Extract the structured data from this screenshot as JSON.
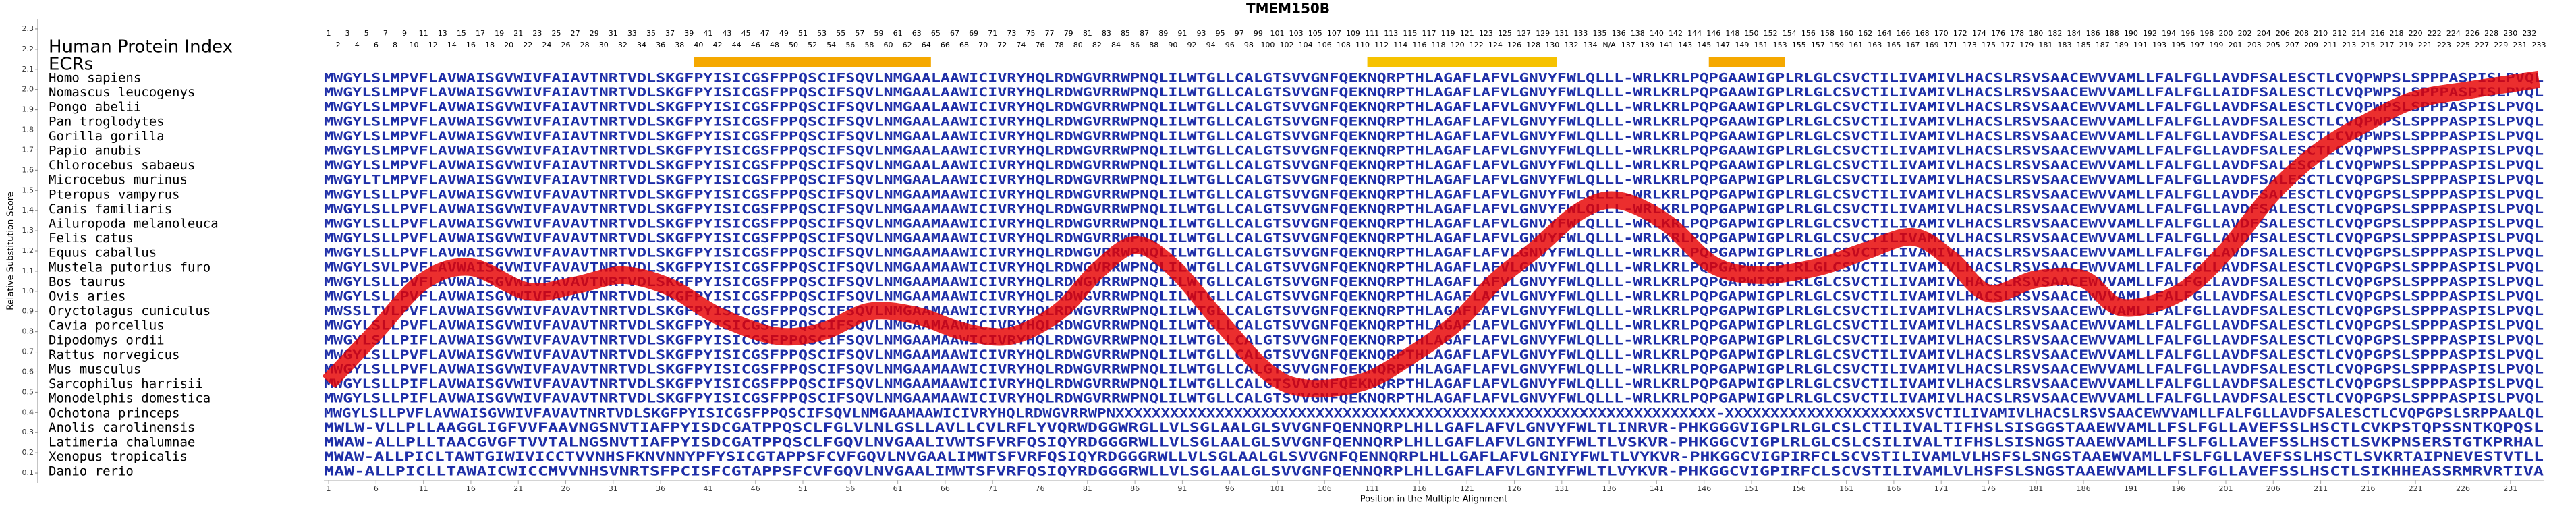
{
  "title": "TMEM150B",
  "y_axis_label": "Relative Substitution Score",
  "x_axis_label": "Position in the Multiple Alignment",
  "index_label": "Human Protein Index",
  "ecr_label": "ECRs",
  "protein_index": [
    1,
    2,
    3,
    4,
    5,
    6,
    7,
    8,
    9,
    10,
    11,
    12,
    13,
    14,
    15,
    16,
    17,
    18,
    19,
    20,
    21,
    22,
    23,
    24,
    25,
    26,
    27,
    28,
    29,
    30,
    31,
    32,
    33,
    34,
    35,
    36,
    37,
    38,
    39,
    40,
    41,
    42,
    43,
    44,
    45,
    46,
    47,
    48,
    49,
    50,
    51,
    52,
    53,
    54,
    55,
    56,
    57,
    58,
    59,
    60,
    61,
    62,
    63,
    64,
    65,
    66,
    67,
    68,
    69,
    70,
    71,
    72,
    73,
    74,
    75,
    76,
    77,
    78,
    79,
    80,
    81,
    82,
    83,
    84,
    85,
    86,
    87,
    88,
    89,
    90,
    91,
    92,
    93,
    94,
    95,
    96,
    97,
    98,
    99,
    100,
    101,
    102,
    103,
    104,
    105,
    106,
    107,
    108,
    109,
    110,
    111,
    112,
    113,
    114,
    115,
    116,
    117,
    118,
    119,
    120,
    121,
    122,
    123,
    124,
    125,
    126,
    127,
    128,
    129,
    130,
    131,
    132,
    133,
    134,
    135,
    "N/A",
    136,
    137,
    138,
    139,
    140,
    141,
    142,
    143,
    144,
    145,
    146,
    147,
    148,
    149,
    150,
    151,
    152,
    153,
    154,
    155,
    156,
    157,
    158,
    159,
    160,
    161,
    162,
    163,
    164,
    165,
    166,
    167,
    168,
    169,
    170,
    171,
    172,
    173,
    174,
    175,
    176,
    177,
    178,
    179,
    180,
    181,
    182,
    183,
    184,
    185,
    186,
    187,
    188,
    189,
    190,
    191,
    192,
    193,
    194,
    195,
    196,
    197,
    198,
    199,
    200,
    201,
    202,
    203,
    204,
    205,
    206,
    207,
    208,
    209,
    210,
    211,
    212,
    213,
    214,
    215,
    216,
    217,
    218,
    219,
    220,
    221,
    222,
    223,
    224,
    225,
    226,
    227,
    228,
    229,
    230,
    231,
    232,
    233
  ],
  "ecrs": [
    {
      "start": 40,
      "end": 64
    },
    {
      "start": 111,
      "end": 130
    },
    {
      "start": 147,
      "end": 154
    }
  ],
  "alignment": [
    {
      "species": "Homo sapiens",
      "sequence": "MWGYLSLMPVFLAVWAISGVWIVFAIAVTNRTVDLSKGFPYISICGSFPPQSCIFSQVLNMGAALAAWICIVRYHQLRDWGVRRWPNQLILWTGLLCALGTSVVGNFQEKNQRPTHLAGAFLAFVLGNVYFWLQLLL-WRLKRLPQPGAAWIGPLRLGLCSVCTILIVAMIVLHACSLRSVSAACEWVVAMLLFALFGLLAVDFSALESCTLCVQPWPSLSPPPASPISLPVQL"
    },
    {
      "species": "Nomascus leucogenys",
      "sequence": "MWGYLSLMPVFLAVWAISGVWIVFAIAVTNRTVDLSKGFPYISICGSFPPQSCIFSQVLNMGAALAAWICIVRYHQLRDWGVRRWPNQLILWTGLLCALGTSVVGNFQEKNQRPTHLAGAFLAFVLGNVYFWLQLLL-WRLKRLPQPGAAWIGPLRLGLCSVCTILIVAMIVLHACSLRSVSAACEWVVAMLLFALFGLLAIDFSALESCTLCVQPWPSLSPPPASPISLPVQL"
    },
    {
      "species": "Pongo abelii",
      "sequence": "MWGYLSLMPVFLAVWAISGVWIVFAIAVTNRTVDLSKGFPYISICGSFPPQSCIFSQVLNMGAALAAWICIVRYHQLRDWGVRRWPNQLILWTGLLCALGTSVVGNFQEKNQRPTHLAGAFLAFVLGNVYFWLQLLL-WRLKRLPQPGAAWIGPLRLGLCSVCTILIVAMIVLHACSLRSVSAACEWVVAMLLFALFGLLAVDFSALESCTLCVQPWPSLSPPPASPISLPVQL"
    },
    {
      "species": "Pan troglodytes",
      "sequence": "MWGYLSLMPVFLAVWAISGVWIVFAIAVTNRTVDLSKGFPYISICGSFPPQSCIFSQVLNMGAALAAWICIVRYHQLRDWGVRRWPNQLILWTGLLCALGTSVVGNFQEKNQRPTHLAGAFLAFVLGNVYFWLQLLL-WRLKRLPQPGAAWIGPLRLGLCSVCTILIVAMIVLHACSLRSVSAACEWVVAMLLFALFGLLAVDFSALESCTLCVQPWPSLSPPPASPISLPVQL"
    },
    {
      "species": "Gorilla gorilla",
      "sequence": "MWGYLSLMPVFLAVWAISGVWIVFAIAVTNRTVDLSKGFPYISICGSFPPQSCIFSQVLNMGAALAAWICIVRYHQLRDWGVRRWPNQLILWTGLLCALGTSVVGNFQEKNQRPTHLAGAFLAFVLGNVYFWLQLLL-WRLKRLPQPGAAWIGPLRLGLCSVCTILIVAMIVLHACSLRSVSAACEWVVAMLLFALFGLLAVDFSALESCTLCVQPWPSLSPPPASPISLPVQL"
    },
    {
      "species": "Papio anubis",
      "sequence": "MWGYLSLMPVFLAVWAISGVWIVFAIAVTNRTVDLSKGFPYISICGSFPPQSCIFSQVLNMGAALAAWICIVRYHQLRDWGVRRWPNQLILWTGLLCALGTSVVGNFQEKNQRPTHLAGAFLAFVLGNVYFWLQLLL-WRLKRLPQPGAAWIGPLRLGLCSVCTILIVAMIVLHACSLRSVSAACEWVVAMLLFALFGLLAVDFSALESCTLCVQPWPSLSPPPASPISLPVQL"
    },
    {
      "species": "Chlorocebus sabaeus",
      "sequence": "MWGYLSLMPVFLAVWAISGVWIVFAIAVTNRTVDLSKGFPYISICGSFPPQSCIFSQVLNMGAALAAWICIVRYHQLRDWGVRRWPNQLILWTGLLCALGTSVVGNFQEKNQRPTHLAGAFLAFVLGNVYFWLQLLL-WRLKRLPQPGAAWIGPLRLGLCSVCTILIVAMIVLHACSLRSVSAACEWVVAMLLFALFGLLAVDFSALESCTLCVQPWPSLSPPPASPISLPVQL"
    },
    {
      "species": "Microcebus murinus",
      "sequence": "MWGYLTLMPVFLAVWAISGVWIVFAIAVTNRTVDLSKGFPYISICGSFPPQSCIFSQVLNMGAALAAWICIVRYHQLRDWGVRRWPNQLILWTGLLCALGTSVVGNFQEKNQRPTHLAGAFLAFVLGNVYFWLQLLL-WRLKRLPQPGAPWIGPLRLGLCSVCTILIVAMIVLHACSLRSVSAACEWVVAMLLFALFGLLAVDFSALESCTLCVQPGPSLSPPPASPISLPVQL"
    },
    {
      "species": "Pteropus vampyrus",
      "sequence": "MWGYLSLLPVFLAVWAISGVWIVFAVAVTNRTVDLSKGFPYISICGSFPPQSCIFSQVLNMGAAMAAWICIVRYHQLRDWGVRRWPNQLILWTGLLCALGTSVVGNFQEKNQRPTHLAGAFLAFVLGNVYFWLQLLL-WRLKRLPQPGAPWIGPLRLGLCSVCTILIVAMIVLHACSLRSVSAACEWVVAMLLFALFGLLAVDFSALESCTLCVQPGPSLSPPPASPISLPVQL"
    },
    {
      "species": "Canis familiaris",
      "sequence": "MWGYLSLLPVFLAVWAISGVWIVFAVAVTNRTVDLSKGFPYISICGSFPPQSCIFSQVLNMGAAMAAWICIVRYHQLRDWGVRRWPNQLILWTGLLCALGTSVVGNFQEKNQRPTHLAGAFLAFVLGNVYFWLQLLL-WRLKRLPQPGAPWIGPLRLGLCSVCTILIVAMIVLHACSLRSVSAACEWVVAMLLFALFGLLAVDFSALESCTLCVQPGPSLSPPPASPISLPVQL"
    },
    {
      "species": "Ailuropoda melanoleuca",
      "sequence": "MWGYLSLLPVFLAVWAISGVWIVFAVAVTNRTVDLSKGFPYISICGSFPPQSCIFSQVLNMGAAMAAWICIVRYHQLRDWGVRRWPNQLILWTGLLCALGTSVVGNFQEKNQRPTHLAGAFLAFVLGNVYFWLQLLL-WRLKRLPQPGAPWIGPLRLGLCSVCTILIVAMIVLHACSLRSVSAACEWVVAMLLFALFGLLAVDFSALESCTLCVQPGPSLSPPPASPISLPVQL"
    },
    {
      "species": "Felis catus",
      "sequence": "MWGYLSLLPVFLAVWAISGVWIVFAVAVTNRTVDLSKGFPYISICGSFPPQSCIFSQVLNMGAAMAAWICIVRYHQLRDWGVRRWPNQLILWTGLLCALGTSVVGNFQEKNQRPTHLAGAFLAFVLGNVYFWLQLLL-WRLKRLPQPGAPWIGPLRLGLCSVCTILIVAMIVLHACSLRSVSAACEWVVAMLLFALFGLLAVDFSALESCTLCVQPGPSLSPPPASPISLPVQL"
    },
    {
      "species": "Equus caballus",
      "sequence": "MWGYLSLLPVFLAVWAISGVWIVFAVAVTNRTVDLSKGFPYISICGSFPPQSCIFSQVLNMGAAMAAWICIVRYHQLRDWGVRRWPNQLILWTGLLCALGTSVVGNFQEKNQRPTHLAGAFLAFVLGNVYFWLQLLL-WRLKRLPQPGAPWIGPLRLGLCSVCTILIVAMIVLHACSLRSVSAACEWVVAMLLFALFGLLAVDFSALESCTLCVQPGPSLSPPPASPISLPVQL"
    },
    {
      "species": "Mustela putorius furo",
      "sequence": "MWGYLSVLPVFLAVWAISGVWIVFAVAVTNRTVDLSKGFPYISICGSFPPQSCIFSQVLNMGAAMAAWICIVRYHQLRDWGVRRWPNQLILWTGLLCALGTSVVGNFQEKNQRPTHLAGAFLAFVLGNVYFWLQLLL-WRLKRLPQPGAPWIGPLRLGLCSVCTILIVAMIVLHACSLRSVSAACEWVVAMLLFALFGLLAVDFSALESCTLCVQPGPSLSPPPASPISLPVQL"
    },
    {
      "species": "Bos taurus",
      "sequence": "MWGYLSLLPVFLAVWAISGVWIVFAVAVTNRTVDLSKGFPYISICGSFPPQSCIFSQVLNMGAAMAAWICIVRYHQLRDWGVRRWPNQLILWTGLLCALGTSVVGNFQEKNQRPTHLAGAFLAFVLGNVYFWLQLLL-WRLKRLPQPGAPWIGPLRLGLCSVCTILIVAMIVLHACSLRSVSAACEWVVAMLLFALFGLLAVDFSALESCTLCVQPGPSLSPPPASPISLPVQL"
    },
    {
      "species": "Ovis aries",
      "sequence": "MWGYLSLLPVFLAVWAISGVWIVFAVAVTNRTVDLSKGFPYISICGSFPPQSCIFSQVLNMGAAMAAWICIVRYHQLRDWGVRRWPNQLILWTGLLCALGTSVVGNFQEKNQRPTHLAGAFLAFVLGNVYFWLQLLL-WRLKRLPQPGAPWIGPLRLGLCSVCTILIVAMIVLHACSLRSVSAACEWVVAMLLFALFGLLAVDFSALESCTLCVQPGPSLSPPPASPISLPVQL"
    },
    {
      "species": "Oryctolagus cuniculus",
      "sequence": "MWSSLTVLPVFLAVWAISGVWIVFAVAVTNRTVDLSKGFPYISICGSFPPQSCIFSQVLNMGAAMAAWICIVRYHQLRDWGVRRWPNQLILWTGLLCALGTSVVGNFQEKNQRPTHLAGAFLAFVLGNVYFWLQLLL-WRLKRLPQPGAPWIGPLRLGLCSVCTILIVAMIVLHACSLRSVSAACEWVVAMLLFALFGLLAVDFSALESCTLCVQPGPSLSPPPASPISLPVQL"
    },
    {
      "species": "Cavia porcellus",
      "sequence": "MWGYLSLLPVFLAVWAISGVWIVFAVAVTNRTVDLSKGFPYISICGSFPPQSCIFSQVLNMGAAMAAWICIVRYHQLRDWGVRRWPNQLILWTGLLCALGTSVVGNFQEKNQRPTHLAGAFLAFVLGNVYFWLQLLL-WRLKRLPQPGAPWIGPLRLGLCSVCTILIVAMIVLHACSLRSVSAACEWVVAMLLFALFGLLAVDFSALESCTLCVQPGPSLSPPPASPISLPVQL"
    },
    {
      "species": "Dipodomys ordii",
      "sequence": "MWGYLSLLPIFLAVWAISGVWIVFAVAVTNRTVDLSKGFPYISICGSFPPQSCIFSQVLNMGAAMAAWICIVRYHQLRDWGVRRWPNQLILWTGLLCALGTSVVGNFQEKNQRPTHLAGAFLAFVLGNVYFWLQLLL-WRLKRLPQPGAPWIGPLRLGLCSVCTILIVAMIVLHACSLRSVSAACEWVVAMLLFALFGLLAVDFSALESCTLCVQPGPSLSPPPASPISLPVQL"
    },
    {
      "species": "Rattus norvegicus",
      "sequence": "MWGYLSLLPVFLAVWAISGVWIVFAVAVTNRTVDLSKGFPYISICGSFPPQSCIFSQVLNMGAAMAAWICIVRYHQLRDWGVRRWPNQLILWTGLLCALGTSVVGNFQEKNQRPTHLAGAFLAFVLGNVYFWLQLLL-WRLKRLPQPGAPWIGPLRLGLCSVCTILIVAMIVLHACSLRSVSAACEWVVAMLLFALFGLLAVDFSALESCTLCVQPGPSLSPPPASPISLPVQL"
    },
    {
      "species": "Mus musculus",
      "sequence": "MWGYLSLLPVFLAVWAISGVWIVFAVAVTNRTVDLSKGFPYISICGSFPPQSCIFSQVLNMGAAMAAWICIVRYHQLRDWGVRRWPNQLILWTGLLCALGTSVVGNFQEKNQRPTHLAGAFLAFVLGNVYFWLQLLL-WRLKRLPQPGAPWIGPLRLGLCSVCTILIVAMIVLHACSLRSVSAACEWVVAMLLFALFGLLAVDFSALESCTLCVQPGPSLSPPPASPISLPVQL"
    },
    {
      "species": "Sarcophilus harrisii",
      "sequence": "MWGYLSLLPIFLAVWAISGVWIVFAVAVTNRTVDLSKGFPYISICGSFPPQSCIFSQVLNMGAAMAAWICIVRYHQLRDWGVRRWPNQLILWTGLLCALGTSVVGNFQEKNQRPTHLAGAFLAFVLGNVYFWLQLLL-WRLKRLPQPGAPWIGPLRLGLCSVCTILIVAMIVLHACSLRSVSAACEWVVAMLLFALFGLLAVDFSALESCTLCVQPGPSLSPPPASPISLPVQL"
    },
    {
      "species": "Monodelphis domestica",
      "sequence": "MWGYLSLLPIFLAVWAISGVWIVFAVAVTNRTVDLSKGFPYISICGSFPPQSCIFSQVLNMGAAMAAWICIVRYHQLRDWGVRRWPNQLILWTGLLCALGTSVVGNFQEKNQRPTHLAGAFLAFVLGNVYFWLQLLL-WRLKRLPQPGAPWIGPLRLGLCSVCTILIVAMIVLHACSLRSVSAACEWVVAMLLFALFGLLAVDFSALESCTLCVQPGPSLSPPPASPISLPVQL"
    },
    {
      "species": "Ochotona princeps",
      "sequence": "MWGYLSLLPVFLAVWAISGVWIVFAVAVTNRTVDLSKGFPYISICGSFPPQSCIFSQVLNMGAAMAAWICIVRYHQLRDWGVRRWPNXXXXXXXXXXXXXXXXXXXXXXXXXXXXXXXXXXXXXXXXXXXXXXXXXXXXXXXXXXXXXXXXXX-XXXXXXXXXXXXXXXXXXXXXSVCTILIVAMIVLHACSLRSVSAACEWVVAMLLFALFGLLAVDFSALESCTLCVQPGPSLSRPPAALQL"
    },
    {
      "species": "Anolis carolinensis",
      "sequence": "MWLW-VLLPLLAAGGLIGFVVFAAVNGSNVTIAFPYISDCGATPPQSCLFGLVLNLGSLLAVLLCVLRFLYVQRWDGGWRGLLVLSGLAALGLSVVGNFQENNQRPLHLLGAFLAFVLGNVYFWLTLINRVR-PHKGGGVIGPLRLGLCSLCTILIVALTIFHSLSISGGSTAAEWVAMLLFSLFGLLAVEFSSLHSCTLCVKPSTQPSSNTKQPQSL"
    },
    {
      "species": "Latimeria chalumnae",
      "sequence": "MWAW-ALLPLLTAACGVGFTVVTALNGSNVTIAFPYISDCGATPPQSCLFGQVLNVGAALIVWTSFVRFQSIQYRDGGGRWLLVLSGLAALGLSVVGNFQENNQRPLHLLGAFLAFVLGNIYFWLTLVSKVR-PHKGGCVIGPLRLGLCSLCSILIVALTIFHSLSISNGSTAAEWVAMLLFSLFGLLAVEFSSLHSCTLSVKPNSERSTGTKPRHAL"
    },
    {
      "species": "Xenopus tropicalis",
      "sequence": "MWAW-ALLPICLTAWTGIWIVICCTVVNHSFKNVNNYPFYSICGTAPPSFCVFGQVLNVGAALIMWTSFVRFQSIQYRDGGGRWLLVLSGLAALGLSVVGNFQENNQRPLHLLGAFLAFVLGNIYFWLTLVYKVR-PHKGGCVIGPIRFCLSCVSTILIVAMLVLHSFSLSNGSTAAEWVAMLLFSLFGLLAVEFSSLHSCTLSVKRTAIPNEVESTVTLL"
    },
    {
      "species": "Danio rerio",
      "sequence": "MAW-ALLPICLLTAWAICWICCMVVNHSVNRTSFPCISFCGTAPPSFCVFGQVLNVGAALIMWTSFVRFQSIQYRDGGGRWLLVLSGLAALGLSVVGNFQENNQRPLHLLGAFLAFVLGNIYFWLTLVYKVR-PHKGGCVIGPIRFCLSCVSTILIVAMLVLHSFSLSNGSTAAEWVAMLLFSLFGLLAVEFSSLHSCTLSIKHHEASSRMRVRTIVA"
    }
  ],
  "chart_data": {
    "type": "line",
    "x": [
      1,
      6,
      11,
      16,
      22,
      27,
      32,
      37,
      42,
      48,
      53,
      58,
      63,
      68,
      73,
      78,
      82,
      86,
      90,
      95,
      100,
      104,
      110,
      115,
      120,
      124,
      128,
      133,
      137,
      142,
      147,
      152,
      158,
      163,
      168,
      172,
      176,
      181,
      186,
      190,
      196,
      201,
      206,
      211,
      216,
      221,
      227,
      234
    ],
    "series": [
      {
        "color": "#e60000",
        "values": [
          0.55,
          0.8,
          1.05,
          1.12,
          1.0,
          1.03,
          1.08,
          1.02,
          0.88,
          0.78,
          0.8,
          0.9,
          0.88,
          0.8,
          0.78,
          0.9,
          1.1,
          1.23,
          1.12,
          0.85,
          0.6,
          0.52,
          0.55,
          0.68,
          0.85,
          1.05,
          1.2,
          1.4,
          1.45,
          1.34,
          1.13,
          1.08,
          1.12,
          1.2,
          1.27,
          1.16,
          0.99,
          1.06,
          1.06,
          0.92,
          0.99,
          1.2,
          1.49,
          1.7,
          1.84,
          1.95,
          2.0,
          2.05
        ]
      }
    ],
    "xlim": [
      0.5,
      234.5
    ],
    "xticks": [
      1,
      6,
      11,
      16,
      21,
      26,
      31,
      36,
      41,
      46,
      51,
      56,
      61,
      66,
      71,
      76,
      81,
      86,
      91,
      96,
      101,
      106,
      111,
      116,
      121,
      126,
      131,
      136,
      141,
      146,
      151,
      156,
      161,
      166,
      171,
      176,
      181,
      186,
      191,
      196,
      201,
      206,
      211,
      216,
      221,
      226,
      231
    ],
    "ylim": [
      0.05,
      2.35
    ],
    "yticks": [
      0.1,
      0.2,
      0.3,
      0.4,
      0.5,
      0.6,
      0.7,
      0.8,
      0.9,
      {
        "value": 1,
        "label": "1.0"
      },
      1.1,
      1.2,
      1.3,
      1.4,
      1.5,
      1.6,
      1.7,
      1.8,
      1.9,
      {
        "value": 2,
        "label": "2.0"
      },
      2.1,
      2.2,
      2.3
    ]
  }
}
